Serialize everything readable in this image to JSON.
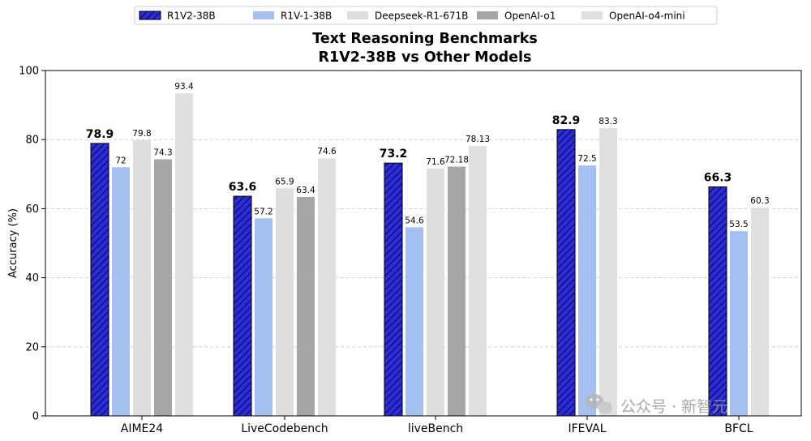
{
  "chart_data": {
    "type": "bar",
    "title": "Text Reasoning Benchmarks",
    "subtitle": "R1V2-38B vs Other Models",
    "xlabel": "",
    "ylabel": "Accuracy (%)",
    "ylim": [
      0,
      100
    ],
    "yticks": [
      "0",
      "20",
      "40",
      "60",
      "80",
      "100"
    ],
    "grid": "horizontal dashed",
    "legend_position": "top-center",
    "categories": [
      "AIME24",
      "LiveCodebench",
      "liveBench",
      "IFEVAL",
      "BFCL"
    ],
    "series": [
      {
        "name": "R1V2-38B",
        "color": "#2b2be0",
        "hatched": true,
        "bold_labels": true,
        "values": [
          78.9,
          63.6,
          73.2,
          82.9,
          66.3
        ],
        "labels": [
          "78.9",
          "63.6",
          "73.2",
          "82.9",
          "66.3"
        ]
      },
      {
        "name": "R1V-1-38B",
        "color": "#a3c0f0",
        "hatched": false,
        "bold_labels": false,
        "values": [
          72,
          57.2,
          54.6,
          72.5,
          53.5
        ],
        "labels": [
          "72",
          "57.2",
          "54.6",
          "72.5",
          "53.5"
        ]
      },
      {
        "name": "Deepseek-R1-671B",
        "color": "#dedede",
        "hatched": false,
        "bold_labels": false,
        "values": [
          79.8,
          65.9,
          71.6,
          null,
          null
        ],
        "labels": [
          "79.8",
          "65.9",
          "71.6",
          null,
          null
        ]
      },
      {
        "name": "OpenAI-o1",
        "color": "#a6a6a6",
        "hatched": false,
        "bold_labels": false,
        "values": [
          74.3,
          63.4,
          72.18,
          null,
          null
        ],
        "labels": [
          "74.3",
          "63.4",
          "72.18",
          null,
          null
        ]
      },
      {
        "name": "OpenAI-o4-mini",
        "color": "#e0e0e0",
        "hatched": false,
        "bold_labels": false,
        "values": [
          93.4,
          74.6,
          78.13,
          83.3,
          60.3
        ],
        "labels": [
          "93.4",
          "74.6",
          "78.13",
          "83.3",
          "60.3"
        ]
      }
    ]
  },
  "watermark": {
    "text": "公众号 · 新智元",
    "icon": "wechat-icon"
  }
}
